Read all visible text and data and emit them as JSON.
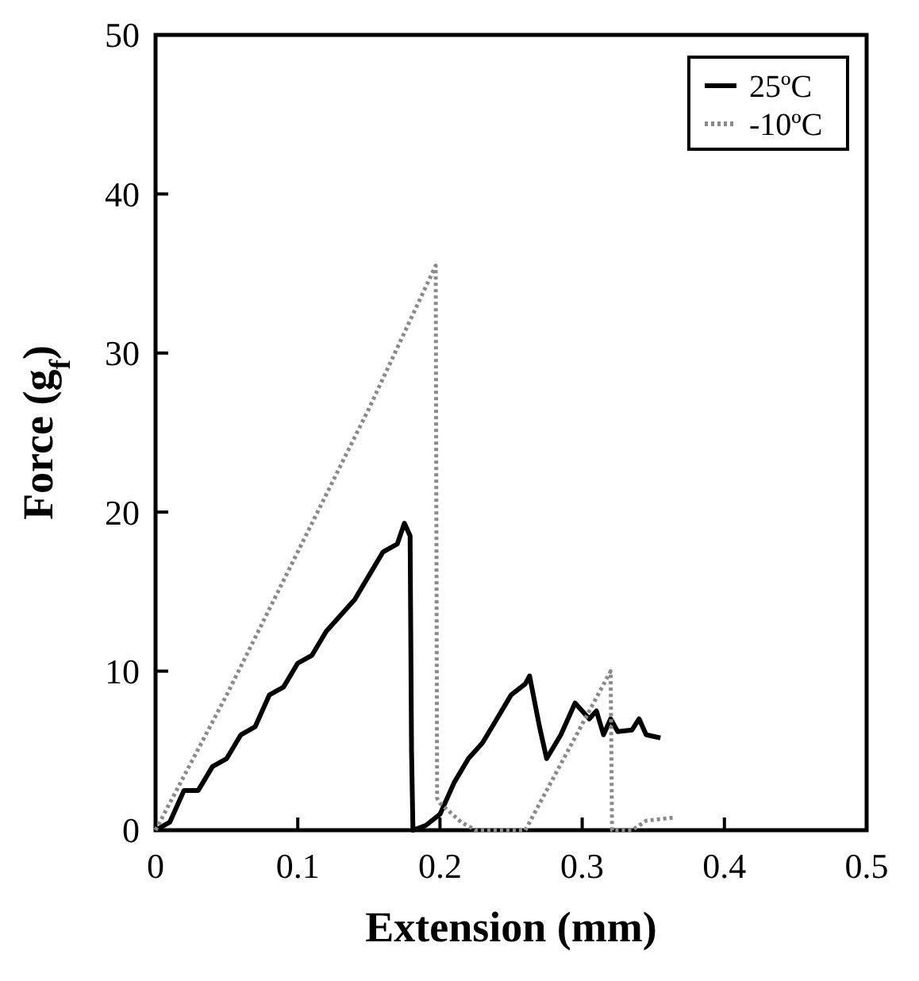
{
  "chart_data": {
    "type": "line",
    "xlabel": "Extension (mm)",
    "ylabel": "Force (g$_{f}$)",
    "xlim": [
      0,
      0.5
    ],
    "ylim": [
      0,
      50
    ],
    "xticks": [
      0,
      0.1,
      0.2,
      0.3,
      0.4,
      0.5
    ],
    "yticks": [
      0,
      10,
      20,
      30,
      40,
      50
    ],
    "legend": "top right",
    "grid": false,
    "series": [
      {
        "name": "25ºC",
        "color": "#000000",
        "line_style": "solid",
        "x": [
          0,
          0.01,
          0.02,
          0.03,
          0.04,
          0.05,
          0.06,
          0.07,
          0.08,
          0.09,
          0.1,
          0.11,
          0.12,
          0.13,
          0.14,
          0.15,
          0.16,
          0.17,
          0.175,
          0.179,
          0.18,
          0.181,
          0.19,
          0.2,
          0.21,
          0.22,
          0.23,
          0.24,
          0.25,
          0.26,
          0.263,
          0.27,
          0.275,
          0.285,
          0.295,
          0.305,
          0.31,
          0.315,
          0.32,
          0.325,
          0.335,
          0.34,
          0.345,
          0.355
        ],
        "values": [
          0,
          0.5,
          2.5,
          2.5,
          4,
          4.5,
          6,
          6.5,
          8.5,
          9,
          10.5,
          11,
          12.5,
          13.5,
          14.5,
          16,
          17.5,
          18,
          19.3,
          18.5,
          5,
          0,
          0.3,
          1,
          3,
          4.5,
          5.5,
          7,
          8.5,
          9.2,
          9.7,
          6.5,
          4.5,
          6,
          8,
          7,
          7.5,
          6,
          7,
          6.2,
          6.3,
          7,
          6,
          5.8
        ]
      },
      {
        "name": "-10ºC",
        "color": "#8a8a8a",
        "line_style": "dotted",
        "x": [
          0,
          0.05,
          0.1,
          0.15,
          0.197,
          0.198,
          0.2,
          0.215,
          0.225,
          0.26,
          0.29,
          0.32,
          0.321,
          0.335,
          0.345,
          0.365
        ],
        "values": [
          0,
          8.5,
          17.5,
          26.5,
          35.5,
          2,
          1.7,
          0.5,
          0,
          0,
          5,
          10,
          0,
          0,
          0.6,
          0.8
        ]
      }
    ]
  }
}
